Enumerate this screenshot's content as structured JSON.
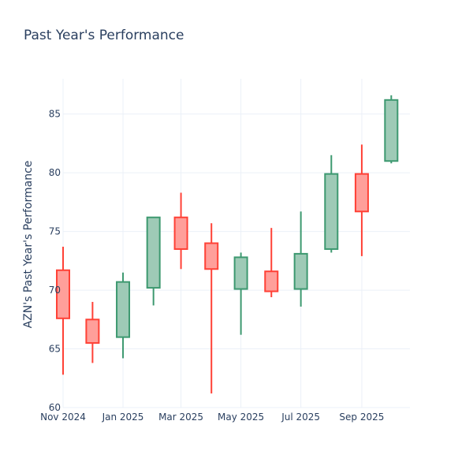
{
  "chart_data": {
    "type": "candlestick",
    "title": "Past Year's Performance",
    "xlabel": "",
    "ylabel": "AZN's Past Year's Performance",
    "ylim": [
      60,
      88
    ],
    "yticks": [
      60,
      65,
      70,
      75,
      80,
      85
    ],
    "x_start": "2024-11-01",
    "x_end": "2025-10-20",
    "xticks": [
      {
        "date": "2024-11-01",
        "label": "Nov 2024"
      },
      {
        "date": "2025-01-01",
        "label": "Jan 2025"
      },
      {
        "date": "2025-03-01",
        "label": "Mar 2025"
      },
      {
        "date": "2025-05-01",
        "label": "May 2025"
      },
      {
        "date": "2025-07-01",
        "label": "Jul 2025"
      },
      {
        "date": "2025-09-01",
        "label": "Sep 2025"
      }
    ],
    "increasing_color": "#3d9970",
    "increasing_fill": "#9ecab6",
    "decreasing_color": "#ff4136",
    "decreasing_fill": "#ff9f9a",
    "grid_color": "#ebf0f8",
    "candles": [
      {
        "month": "Nov 2024",
        "date": "2024-11-01",
        "open": 71.7,
        "high": 73.7,
        "low": 62.8,
        "close": 67.6
      },
      {
        "month": "Dec 2024",
        "date": "2024-12-01",
        "open": 67.5,
        "high": 69.0,
        "low": 63.8,
        "close": 65.5
      },
      {
        "month": "Jan 2025",
        "date": "2025-01-01",
        "open": 66.0,
        "high": 71.5,
        "low": 64.2,
        "close": 70.7
      },
      {
        "month": "Feb 2025",
        "date": "2025-02-01",
        "open": 70.2,
        "high": 76.2,
        "low": 68.7,
        "close": 76.2
      },
      {
        "month": "Mar 2025",
        "date": "2025-03-01",
        "open": 76.2,
        "high": 78.3,
        "low": 71.8,
        "close": 73.5
      },
      {
        "month": "Apr 2025",
        "date": "2025-04-01",
        "open": 74.0,
        "high": 75.7,
        "low": 61.2,
        "close": 71.8
      },
      {
        "month": "May 2025",
        "date": "2025-05-01",
        "open": 70.1,
        "high": 73.2,
        "low": 66.2,
        "close": 72.8
      },
      {
        "month": "Jun 2025",
        "date": "2025-06-01",
        "open": 71.6,
        "high": 75.3,
        "low": 69.4,
        "close": 69.9
      },
      {
        "month": "Jul 2025",
        "date": "2025-07-01",
        "open": 70.1,
        "high": 76.7,
        "low": 68.6,
        "close": 73.1
      },
      {
        "month": "Aug 2025",
        "date": "2025-08-01",
        "open": 73.5,
        "high": 81.5,
        "low": 73.2,
        "close": 79.9
      },
      {
        "month": "Sep 2025",
        "date": "2025-09-01",
        "open": 79.9,
        "high": 82.4,
        "low": 72.9,
        "close": 76.7
      },
      {
        "month": "Oct 2025",
        "date": "2025-10-01",
        "open": 81.0,
        "high": 86.6,
        "low": 80.8,
        "close": 86.2
      }
    ]
  }
}
